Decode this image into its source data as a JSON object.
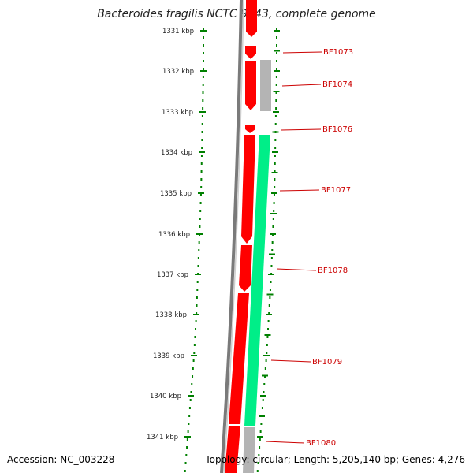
{
  "title": "Bacteroides fragilis NCTC 9343, complete genome",
  "footer": {
    "accession": "Accession: NC_003228",
    "topology": "Topology: circular; Length: 5,205,140 bp; Genes: 4,276"
  },
  "colors": {
    "forward_gene": "#ff0000",
    "reverse_gene": "#00ee88",
    "gray_gene": "#b4b4b4",
    "scale_ticks": "#008000",
    "label_text": "#cc0000",
    "backbone": "#808080"
  },
  "scale": {
    "unit": "kbp",
    "ticks": [
      {
        "label": "1331 kbp"
      },
      {
        "label": "1332 kbp"
      },
      {
        "label": "1333 kbp"
      },
      {
        "label": "1334 kbp"
      },
      {
        "label": "1335 kbp"
      },
      {
        "label": "1336 kbp"
      },
      {
        "label": "1337 kbp"
      },
      {
        "label": "1338 kbp"
      },
      {
        "label": "1339 kbp"
      },
      {
        "label": "1340 kbp"
      },
      {
        "label": "1341 kbp"
      }
    ]
  },
  "genes": [
    {
      "name": "BF1073"
    },
    {
      "name": "BF1074"
    },
    {
      "name": "BF1076"
    },
    {
      "name": "BF1077"
    },
    {
      "name": "BF1078"
    },
    {
      "name": "BF1079"
    },
    {
      "name": "BF1080"
    }
  ]
}
